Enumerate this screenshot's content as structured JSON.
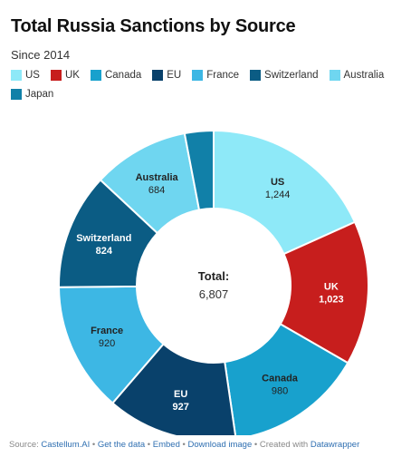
{
  "title": "Total Russia Sanctions by Source",
  "subtitle": "Since 2014",
  "center_label": {
    "title": "Total:",
    "value": "6,807"
  },
  "footer": {
    "source_label": "Source:",
    "source_link": "Castellum.AI",
    "sep": "•",
    "get_data": "Get the data",
    "embed": "Embed",
    "download": "Download image",
    "created": "Created with",
    "tool": "Datawrapper"
  },
  "chart_data": {
    "type": "pie",
    "donut": true,
    "title": "Total Russia Sanctions by Source",
    "subtitle": "Since 2014",
    "legend_position": "top",
    "categories": [
      "US",
      "UK",
      "Canada",
      "EU",
      "France",
      "Switzerland",
      "Australia",
      "Japan"
    ],
    "values": [
      1244,
      1023,
      980,
      927,
      920,
      824,
      684,
      205
    ],
    "value_labels": [
      "1,244",
      "1,023",
      "980",
      "927",
      "920",
      "824",
      "684",
      ""
    ],
    "colors": [
      "#8ee9f8",
      "#c71e1d",
      "#18a1cd",
      "#09416b",
      "#3db7e4",
      "#0b5c84",
      "#6fd6f0",
      "#1180a8"
    ],
    "label_colors": [
      "#222222",
      "#ffffff",
      "#222222",
      "#ffffff",
      "#222222",
      "#ffffff",
      "#222222",
      "#ffffff"
    ]
  }
}
